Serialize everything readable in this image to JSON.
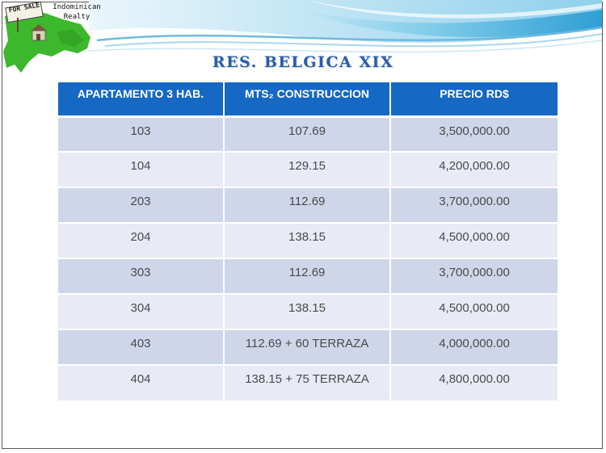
{
  "brand": {
    "logo_line1": "Indominican",
    "logo_line2": "Realty",
    "sign_text": "FOR SALE",
    "colors": {
      "map_green": "#3db82d",
      "swoosh_blue": "#5ab8e0"
    }
  },
  "title": "RES. BELGICA XIX",
  "table": {
    "headers": [
      "APARTAMENTO 3 HAB.",
      "MTS₂  CONSTRUCCION",
      "PRECIO RD$"
    ],
    "rows": [
      {
        "unit": "103",
        "area": "107.69",
        "price": "3,500,000.00"
      },
      {
        "unit": "104",
        "area": "129.15",
        "price": "4,200,000.00"
      },
      {
        "unit": "203",
        "area": "112.69",
        "price": "3,700,000.00"
      },
      {
        "unit": "204",
        "area": "138.15",
        "price": "4,500,000.00"
      },
      {
        "unit": "303",
        "area": "112.69",
        "price": "3,700,000.00"
      },
      {
        "unit": "304",
        "area": "138.15",
        "price": "4,500,000.00"
      },
      {
        "unit": "403",
        "area": "112.69 + 60 TERRAZA",
        "price": "4,000,000.00"
      },
      {
        "unit": "404",
        "area": "138.15 + 75 TERRAZA",
        "price": "4,800,000.00"
      }
    ],
    "colors": {
      "header": "#1568c4",
      "row_dark": "#cfd6ea",
      "row_light": "#e8ebf5"
    }
  }
}
